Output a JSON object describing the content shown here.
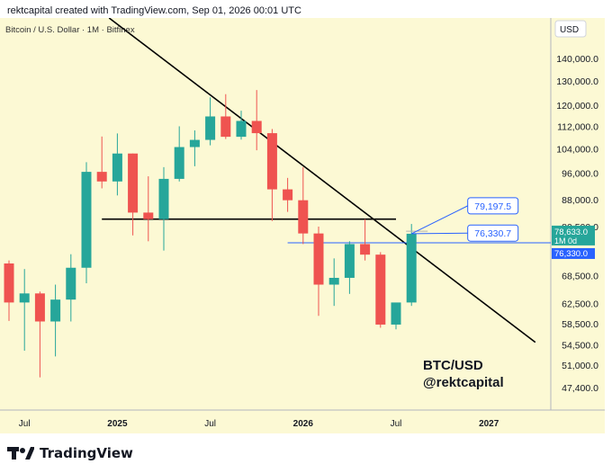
{
  "header": {
    "attribution": "rektcapital created with TradingView.com, Sep 01, 2026 00:01 UTC"
  },
  "footer": {
    "brand": "TradingView",
    "logo_icon": "tradingview-logo-icon"
  },
  "colors": {
    "background": "#fcf9d4",
    "up": "#26a69a",
    "down": "#ef5350",
    "trendline": "#000000",
    "annotation": "#2962ff",
    "price_badge": "#26a69a"
  },
  "chart_data": {
    "type": "candlestick",
    "symbol_label": "Bitcoin / U.S. Dollar · 1M · Bitfinex",
    "currency_label": "USD",
    "scale": "log",
    "ylim": [
      44000,
      160000
    ],
    "y_ticks": [
      {
        "value": 140000,
        "label": "140,000.0"
      },
      {
        "value": 130000,
        "label": "130,000.0"
      },
      {
        "value": 120000,
        "label": "120,000.0"
      },
      {
        "value": 112000,
        "label": "112,000.0"
      },
      {
        "value": 104000,
        "label": "104,000.0"
      },
      {
        "value": 96000,
        "label": "96,000.0"
      },
      {
        "value": 88000,
        "label": "88,000.0"
      },
      {
        "value": 80500,
        "label": "80,500.0"
      },
      {
        "value": 68500,
        "label": "68,500.0"
      },
      {
        "value": 62500,
        "label": "62,500.0"
      },
      {
        "value": 58500,
        "label": "58,500.0"
      },
      {
        "value": 54500,
        "label": "54,500.0"
      },
      {
        "value": 51000,
        "label": "51,000.0"
      },
      {
        "value": 47400,
        "label": "47,400.0"
      }
    ],
    "x_ticks": [
      {
        "date": "2024-07",
        "label": "Jul"
      },
      {
        "date": "2025-01",
        "label": "2025"
      },
      {
        "date": "2025-07",
        "label": "Jul"
      },
      {
        "date": "2026-01",
        "label": "2026"
      },
      {
        "date": "2026-07",
        "label": "Jul"
      },
      {
        "date": "2027-01",
        "label": "2027"
      }
    ],
    "candles": [
      {
        "date": "2024-06",
        "open": 71300,
        "high": 72000,
        "low": 59000,
        "close": 62700
      },
      {
        "date": "2024-07",
        "open": 62700,
        "high": 70000,
        "low": 53500,
        "close": 64600
      },
      {
        "date": "2024-08",
        "open": 64600,
        "high": 65000,
        "low": 49000,
        "close": 58900
      },
      {
        "date": "2024-09",
        "open": 58900,
        "high": 66500,
        "low": 52500,
        "close": 63300
      },
      {
        "date": "2024-10",
        "open": 63300,
        "high": 73500,
        "low": 58900,
        "close": 70300
      },
      {
        "date": "2024-11",
        "open": 70300,
        "high": 99500,
        "low": 66800,
        "close": 96400
      },
      {
        "date": "2024-12",
        "open": 96400,
        "high": 108300,
        "low": 91300,
        "close": 93400
      },
      {
        "date": "2025-01",
        "open": 93400,
        "high": 109400,
        "low": 89200,
        "close": 102400
      },
      {
        "date": "2025-02",
        "open": 102400,
        "high": 102400,
        "low": 78200,
        "close": 84300
      },
      {
        "date": "2025-03",
        "open": 84300,
        "high": 95000,
        "low": 76700,
        "close": 82500
      },
      {
        "date": "2025-04",
        "open": 82500,
        "high": 97900,
        "low": 74400,
        "close": 94200
      },
      {
        "date": "2025-05",
        "open": 94200,
        "high": 112000,
        "low": 93400,
        "close": 104600
      },
      {
        "date": "2025-06",
        "open": 104600,
        "high": 110500,
        "low": 98200,
        "close": 107100
      },
      {
        "date": "2025-07",
        "open": 107100,
        "high": 123200,
        "low": 105200,
        "close": 115700
      },
      {
        "date": "2025-08",
        "open": 115700,
        "high": 124500,
        "low": 107400,
        "close": 108200
      },
      {
        "date": "2025-09",
        "open": 108200,
        "high": 117900,
        "low": 107200,
        "close": 114000
      },
      {
        "date": "2025-10",
        "open": 114000,
        "high": 126200,
        "low": 103500,
        "close": 109500
      },
      {
        "date": "2025-11",
        "open": 109500,
        "high": 111000,
        "low": 82000,
        "close": 91000
      },
      {
        "date": "2025-12",
        "open": 91000,
        "high": 94500,
        "low": 84500,
        "close": 87800
      },
      {
        "date": "2026-01",
        "open": 87800,
        "high": 97900,
        "low": 76000,
        "close": 78700
      },
      {
        "date": "2026-02",
        "open": 78700,
        "high": 80500,
        "low": 60000,
        "close": 66500
      },
      {
        "date": "2026-03",
        "open": 66500,
        "high": 72500,
        "low": 62000,
        "close": 68000
      },
      {
        "date": "2026-04",
        "open": 68000,
        "high": 76700,
        "low": 64500,
        "close": 76000
      },
      {
        "date": "2026-05",
        "open": 76000,
        "high": 82500,
        "low": 72000,
        "close": 73400
      },
      {
        "date": "2026-06",
        "open": 73400,
        "high": 74000,
        "low": 57700,
        "close": 58300
      },
      {
        "date": "2026-07",
        "open": 58300,
        "high": 62500,
        "low": 57400,
        "close": 62700
      },
      {
        "date": "2026-08",
        "open": 62700,
        "high": 81200,
        "low": 62000,
        "close": 78633
      }
    ],
    "trendlines": [
      {
        "name": "descending-trendline",
        "from": {
          "date": "2024-12-15",
          "value": 160000
        },
        "to": {
          "date": "2027-04-01",
          "value": 55000
        }
      },
      {
        "name": "horizontal-support-line",
        "from": {
          "date": "2024-12",
          "value": 82500
        },
        "to": {
          "date": "2026-07",
          "value": 82500
        }
      }
    ],
    "annotation_lines": [
      {
        "name": "line-to-79197",
        "from": {
          "date": "2026-08",
          "value": 78633
        },
        "to": {
          "date": "2026-11-20",
          "value": 86200
        }
      },
      {
        "name": "line-to-76330",
        "from": {
          "date": "2026-08",
          "value": 78633
        },
        "to": {
          "date": "2026-11-20",
          "value": 78800
        }
      }
    ],
    "level_line": {
      "value": 76330,
      "from": "2025-12",
      "to": "2027-06"
    },
    "callouts": [
      {
        "label": "79,197.5",
        "value": 86200
      },
      {
        "label": "76,330.7",
        "value": 78800
      }
    ],
    "price_badge": {
      "value": 78633,
      "label": "78,633.0",
      "interval": "1M 0d"
    },
    "level_badge": {
      "value": 76330,
      "label": "76,330.0"
    },
    "watermark": {
      "line1": "BTC/USD",
      "line2": "@rektcapital"
    }
  }
}
